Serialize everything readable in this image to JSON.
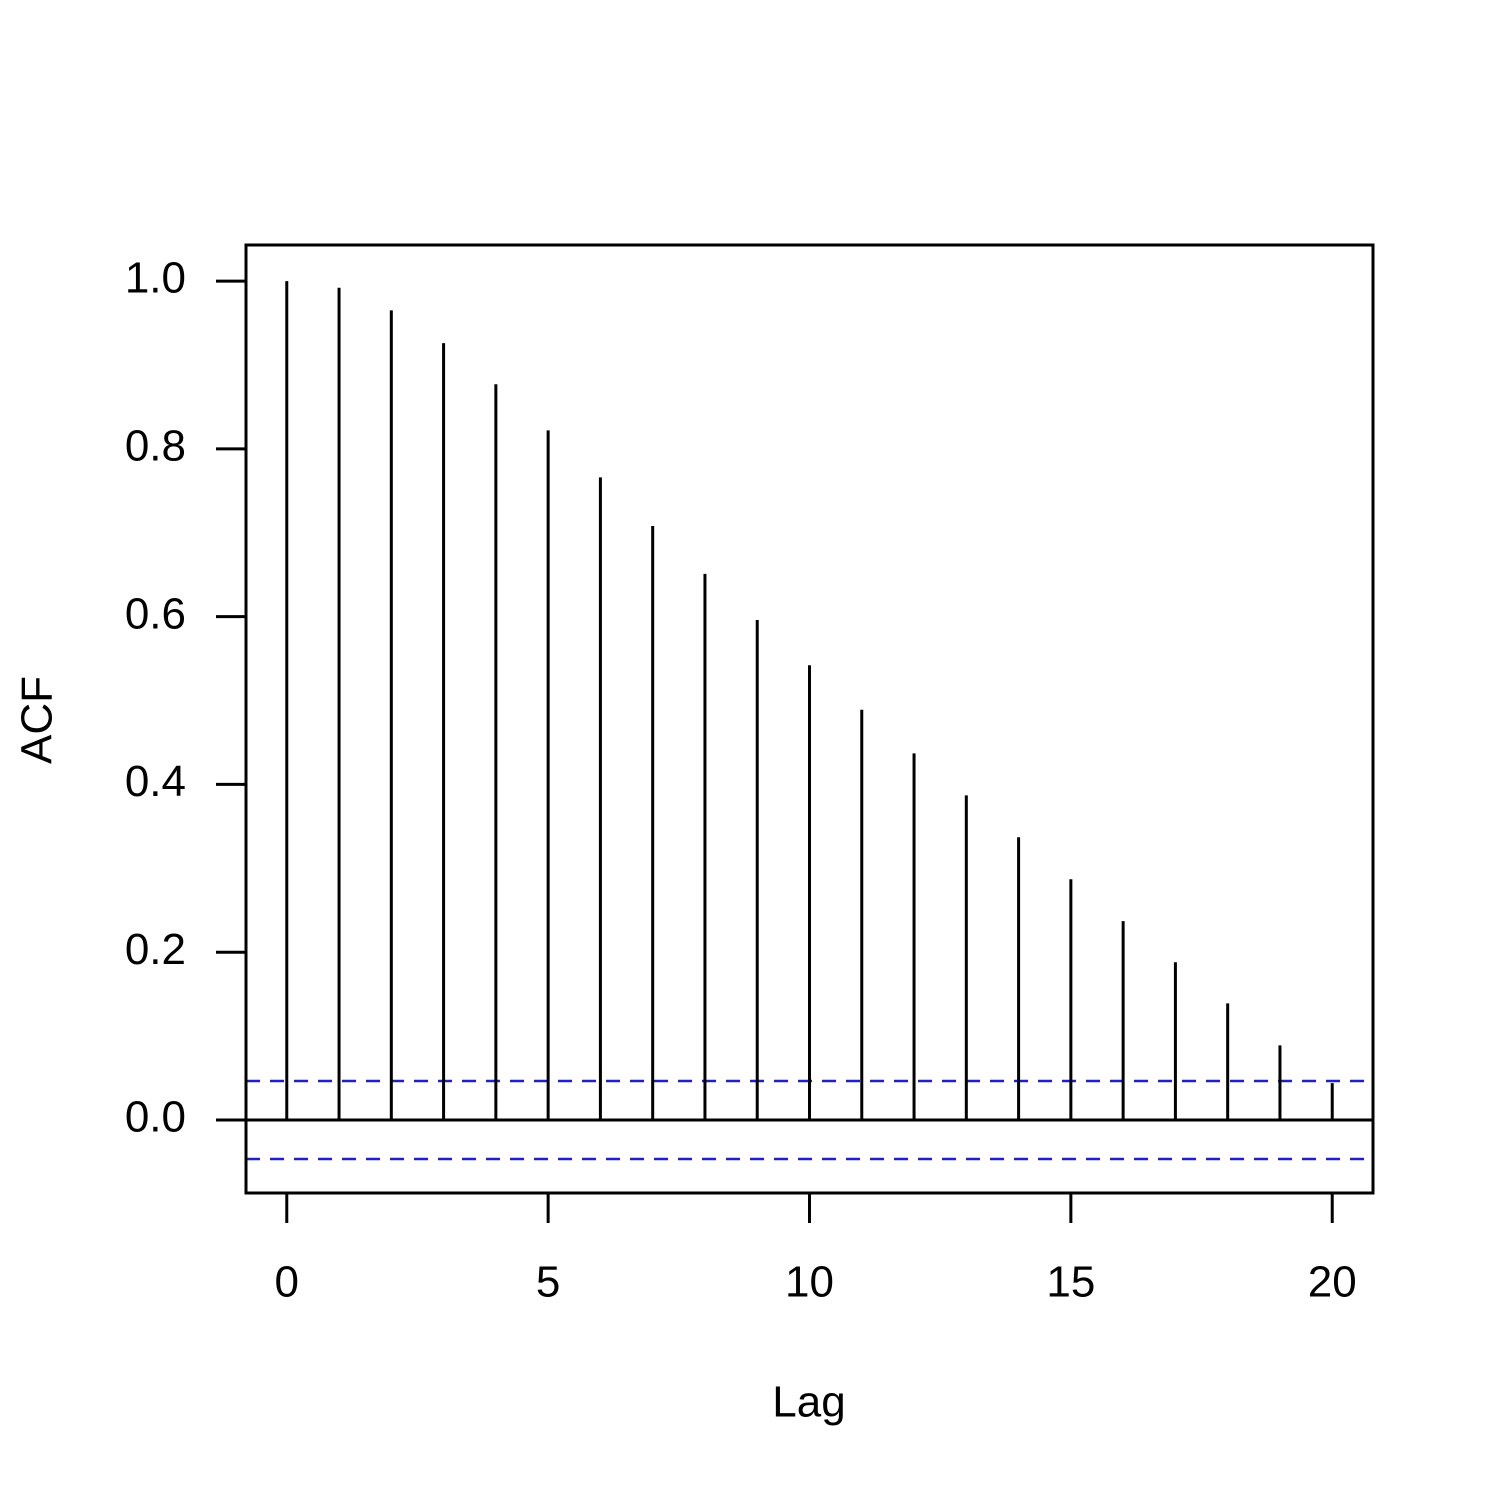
{
  "chart_data": {
    "type": "acf",
    "xlabel": "Lag",
    "ylabel": "ACF",
    "x": [
      0,
      1,
      2,
      3,
      4,
      5,
      6,
      7,
      8,
      9,
      10,
      11,
      12,
      13,
      14,
      15,
      16,
      17,
      18,
      19,
      20
    ],
    "values": [
      1.0,
      0.992,
      0.965,
      0.926,
      0.877,
      0.822,
      0.766,
      0.708,
      0.651,
      0.596,
      0.542,
      0.489,
      0.437,
      0.387,
      0.337,
      0.287,
      0.237,
      0.188,
      0.139,
      0.089,
      0.044
    ],
    "color": "#000000",
    "ci_lines": [
      0.0465,
      -0.0465
    ],
    "ci_color": "#2020c8",
    "xlim": [
      -0.78,
      20.78
    ],
    "ylim": [
      -0.087,
      1.043
    ],
    "xticks": [
      0,
      5,
      10,
      15,
      20
    ],
    "yticks": [
      {
        "value": 0,
        "label": "0.0"
      },
      0.2,
      0.4,
      0.6,
      0.8,
      {
        "value": 1,
        "label": "1.0"
      }
    ]
  }
}
